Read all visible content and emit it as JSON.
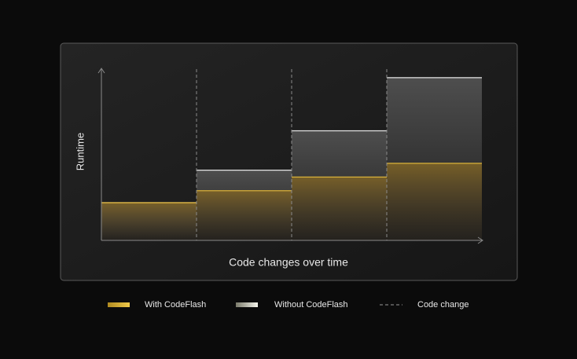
{
  "chart_data": {
    "type": "step-bar",
    "y_label": "Runtime",
    "x_label": "Code changes over time",
    "categories": [
      null,
      null,
      null,
      null
    ],
    "series": [
      {
        "name": "Without CodeFlash",
        "color": "#e6e6e6",
        "values": [
          22,
          41,
          64,
          95
        ]
      },
      {
        "name": "With CodeFlash",
        "color": "#d9b13a",
        "values": [
          22,
          29,
          37,
          45
        ]
      }
    ],
    "boundary_label": "Code change",
    "ylim": [
      0,
      100
    ]
  }
}
